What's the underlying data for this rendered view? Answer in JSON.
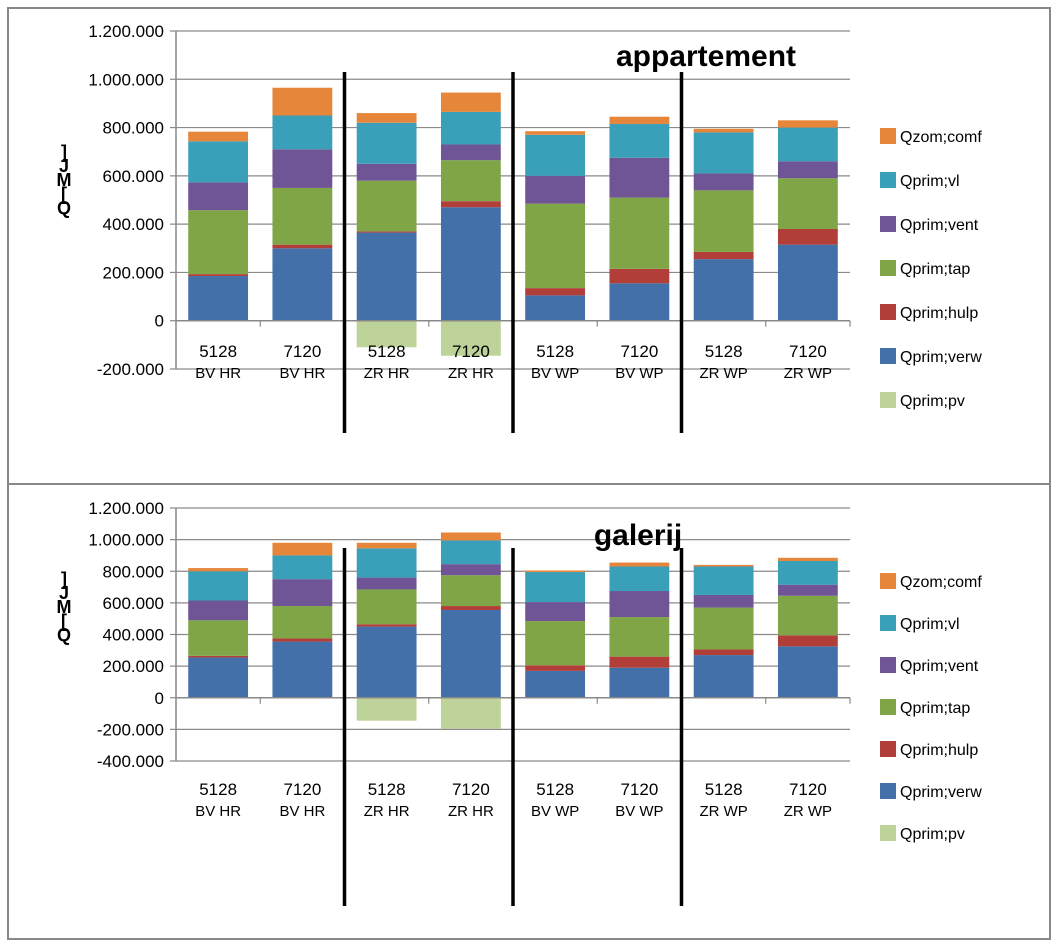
{
  "colors": {
    "Qzom;comf": "#E5863A",
    "Qprim;vl": "#3A9FB8",
    "Qprim;vent": "#6F5595",
    "Qprim;tap": "#7FA546",
    "Qprim;hulp": "#B23E3A",
    "Qprim;verw": "#4370A9",
    "Qprim;pv": "#BED399"
  },
  "chart_data": [
    {
      "type": "bar",
      "stacked": true,
      "title": "appartement",
      "ylabel": "Q[MJ]",
      "ylim": [
        -200000,
        1200000
      ],
      "yticks": [
        -200000,
        0,
        200000,
        400000,
        600000,
        800000,
        1000000,
        1200000
      ],
      "ytick_labels": [
        "-200.000",
        "0",
        "200.000",
        "400.000",
        "600.000",
        "800.000",
        "1.000.000",
        "1.200.000"
      ],
      "categories": [
        {
          "num": "5128",
          "name": "BV HR"
        },
        {
          "num": "7120",
          "name": "BV HR"
        },
        {
          "num": "5128",
          "name": "ZR HR"
        },
        {
          "num": "7120",
          "name": "ZR HR"
        },
        {
          "num": "5128",
          "name": "BV WP"
        },
        {
          "num": "7120",
          "name": "BV WP"
        },
        {
          "num": "5128",
          "name": "ZR WP"
        },
        {
          "num": "7120",
          "name": "ZR WP"
        }
      ],
      "group_separators_after": [
        2,
        4,
        6
      ],
      "legend_position": "right",
      "series": [
        {
          "name": "Qprim;verw",
          "values": [
            185000,
            300000,
            365000,
            470000,
            105000,
            155000,
            255000,
            315000
          ]
        },
        {
          "name": "Qprim;hulp",
          "values": [
            8000,
            15000,
            5000,
            25000,
            30000,
            60000,
            30000,
            65000
          ]
        },
        {
          "name": "Qprim;tap",
          "values": [
            265000,
            235000,
            210000,
            170000,
            350000,
            295000,
            255000,
            210000
          ]
        },
        {
          "name": "Qprim;vent",
          "values": [
            115000,
            160000,
            70000,
            65000,
            115000,
            165000,
            70000,
            70000
          ]
        },
        {
          "name": "Qprim;vl",
          "values": [
            170000,
            140000,
            170000,
            135000,
            170000,
            140000,
            170000,
            140000
          ]
        },
        {
          "name": "Qzom;comf",
          "values": [
            40000,
            115000,
            40000,
            80000,
            15000,
            30000,
            15000,
            30000
          ]
        },
        {
          "name": "Qprim;pv",
          "values": [
            0,
            0,
            -110000,
            -145000,
            0,
            0,
            0,
            0
          ]
        }
      ],
      "legend": [
        "Qzom;comf",
        "Qprim;vl",
        "Qprim;vent",
        "Qprim;tap",
        "Qprim;hulp",
        "Qprim;verw",
        "Qprim;pv"
      ]
    },
    {
      "type": "bar",
      "stacked": true,
      "title": "galerij",
      "ylabel": "Q[MJ]",
      "ylim": [
        -400000,
        1200000
      ],
      "yticks": [
        -400000,
        -200000,
        0,
        200000,
        400000,
        600000,
        800000,
        1000000,
        1200000
      ],
      "ytick_labels": [
        "-400.000",
        "-200.000",
        "0",
        "200.000",
        "400.000",
        "600.000",
        "800.000",
        "1.000.000",
        "1.200.000"
      ],
      "categories": [
        {
          "num": "5128",
          "name": "BV  HR"
        },
        {
          "num": "7120",
          "name": "BV  HR"
        },
        {
          "num": "5128",
          "name": "ZR HR"
        },
        {
          "num": "7120",
          "name": "ZR HR"
        },
        {
          "num": "5128",
          "name": "BV WP"
        },
        {
          "num": "7120",
          "name": "BV WP"
        },
        {
          "num": "5128",
          "name": "ZR WP"
        },
        {
          "num": "7120",
          "name": "ZR WP"
        }
      ],
      "group_separators_after": [
        2,
        4,
        6
      ],
      "legend_position": "right",
      "series": [
        {
          "name": "Qprim;verw",
          "values": [
            255000,
            355000,
            450000,
            555000,
            170000,
            190000,
            270000,
            325000
          ]
        },
        {
          "name": "Qprim;hulp",
          "values": [
            10000,
            20000,
            15000,
            25000,
            35000,
            70000,
            35000,
            70000
          ]
        },
        {
          "name": "Qprim;tap",
          "values": [
            225000,
            205000,
            220000,
            195000,
            280000,
            250000,
            265000,
            250000
          ]
        },
        {
          "name": "Qprim;vent",
          "values": [
            125000,
            170000,
            75000,
            70000,
            120000,
            165000,
            80000,
            70000
          ]
        },
        {
          "name": "Qprim;vl",
          "values": [
            185000,
            150000,
            185000,
            150000,
            190000,
            155000,
            180000,
            150000
          ]
        },
        {
          "name": "Qzom;comf",
          "values": [
            20000,
            80000,
            35000,
            50000,
            10000,
            25000,
            10000,
            20000
          ]
        },
        {
          "name": "Qprim;pv",
          "values": [
            0,
            0,
            -145000,
            -195000,
            0,
            0,
            0,
            0
          ]
        }
      ],
      "legend": [
        "Qzom;comf",
        "Qprim;vl",
        "Qprim;vent",
        "Qprim;tap",
        "Qprim;hulp",
        "Qprim;verw",
        "Qprim;pv"
      ]
    }
  ]
}
